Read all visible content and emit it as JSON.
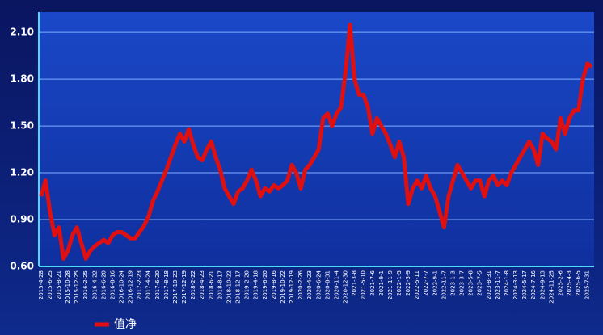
{
  "chart_data": {
    "type": "line",
    "categories": [
      "2015-4-28",
      null,
      "2015-6-25",
      null,
      "2015-8-21",
      null,
      "2015-10-28",
      null,
      "2015-12-25",
      null,
      "2016-2-25",
      null,
      "2016-4-22",
      null,
      "2016-6-20",
      null,
      "2016-8-16",
      null,
      "2016-10-24",
      null,
      "2016-12-19",
      null,
      "2017-2-23",
      null,
      "2017-4-24",
      null,
      "2017-6-20",
      null,
      "2017-8-18",
      null,
      "2017-10-23",
      null,
      "2017-12-19",
      null,
      "2018-2-22",
      null,
      "2018-4-23",
      null,
      "2018-6-21",
      null,
      "2018-8-17",
      null,
      "2018-10-22",
      null,
      "2018-12-17",
      null,
      "2019-2-20",
      null,
      "2019-4-18",
      null,
      "2019-6-20",
      null,
      "2019-8-16",
      null,
      "2019-10-22",
      null,
      "2019-12-19",
      null,
      "2020-2-26",
      null,
      "2020-4-23",
      null,
      "2020-6-24",
      null,
      "2020-8-31",
      null,
      "2020-11-4",
      null,
      "2020-12-30",
      null,
      "2021-3-8",
      null,
      "2021-5-10",
      null,
      "2021-7-6",
      null,
      "2021-9-1",
      null,
      "2021-11-9",
      null,
      "2022-1-5",
      null,
      "2022-3-9",
      null,
      "2022-5-11",
      null,
      "2022-7-7",
      null,
      "2022-9-1",
      null,
      "2022-11-7",
      null,
      "2023-1-3",
      null,
      "2023-3-7",
      null,
      "2023-5-8",
      null,
      "2023-7-5",
      null,
      "2023-8-31",
      null,
      "2023-11-7",
      null,
      "2024-1-8",
      null,
      "2024-3-13",
      null,
      "2024-5-17",
      null,
      "2024-7-16",
      null,
      "2024-9-13",
      null,
      "2024-11-25",
      null,
      "2025-2-6",
      null,
      "2025-4-3",
      null,
      "2025-6-5",
      null,
      "2025-7-31",
      null
    ],
    "series": [
      {
        "name": "值净",
        "color": "#e01010",
        "values": [
          1.05,
          1.15,
          0.95,
          0.8,
          0.85,
          0.65,
          0.7,
          0.8,
          0.85,
          0.75,
          0.65,
          0.7,
          0.73,
          0.75,
          0.77,
          0.75,
          0.8,
          0.82,
          0.82,
          0.8,
          0.78,
          0.78,
          0.82,
          0.86,
          0.92,
          1.02,
          1.08,
          1.15,
          1.22,
          1.3,
          1.38,
          1.45,
          1.4,
          1.48,
          1.38,
          1.3,
          1.28,
          1.35,
          1.4,
          1.3,
          1.22,
          1.1,
          1.05,
          1.0,
          1.08,
          1.1,
          1.15,
          1.22,
          1.15,
          1.05,
          1.1,
          1.08,
          1.12,
          1.1,
          1.12,
          1.15,
          1.25,
          1.2,
          1.1,
          1.22,
          1.25,
          1.3,
          1.35,
          1.55,
          1.58,
          1.5,
          1.58,
          1.62,
          1.85,
          2.15,
          1.8,
          1.7,
          1.7,
          1.62,
          1.45,
          1.55,
          1.5,
          1.45,
          1.38,
          1.3,
          1.4,
          1.3,
          1.0,
          1.1,
          1.15,
          1.1,
          1.18,
          1.1,
          1.05,
          0.95,
          0.85,
          1.05,
          1.15,
          1.25,
          1.2,
          1.15,
          1.1,
          1.15,
          1.15,
          1.05,
          1.15,
          1.18,
          1.12,
          1.15,
          1.12,
          1.2,
          1.25,
          1.3,
          1.35,
          1.4,
          1.35,
          1.25,
          1.45,
          1.42,
          1.4,
          1.35,
          1.55,
          1.45,
          1.55,
          1.6,
          1.6,
          1.8,
          1.9,
          1.88
        ]
      }
    ],
    "ylim": [
      0.6,
      2.23
    ],
    "yticks": [
      {
        "value": 0.6,
        "label": "0.60"
      },
      {
        "value": 0.9,
        "label": "0.90"
      },
      {
        "value": 1.2,
        "label": "1.20"
      },
      {
        "value": 1.5,
        "label": "1.50"
      },
      {
        "value": 1.8,
        "label": "1.80"
      },
      {
        "value": 2.1,
        "label": "2.10"
      }
    ],
    "grid": true,
    "legend": "bottom-left"
  }
}
